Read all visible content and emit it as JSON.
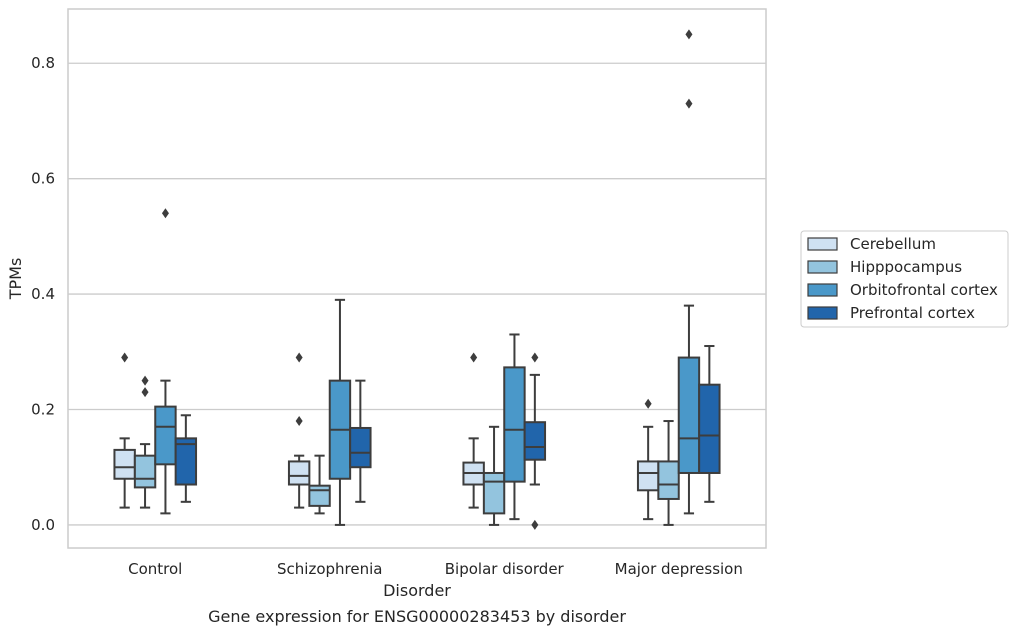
{
  "chart_data": {
    "type": "box",
    "title": "",
    "caption": "Gene expression for ENSG00000283453 by disorder",
    "xlabel": "Disorder",
    "ylabel": "TPMs",
    "ylim": [
      -0.04,
      0.894
    ],
    "yticks": [
      0.0,
      0.2,
      0.4,
      0.6,
      0.8
    ],
    "ytick_labels": [
      "0.0",
      "0.2",
      "0.4",
      "0.6",
      "0.8"
    ],
    "grid": "horizontal",
    "legend_position": "right",
    "categories": [
      "Control",
      "Schizophrenia",
      "Bipolar disorder",
      "Major depression"
    ],
    "series": [
      {
        "name": "Cerebellum",
        "color": "#cfe1f2",
        "boxes": [
          {
            "whislo": 0.03,
            "q1": 0.08,
            "med": 0.1,
            "q3": 0.13,
            "whishi": 0.15,
            "fliers": [
              0.29
            ]
          },
          {
            "whislo": 0.03,
            "q1": 0.07,
            "med": 0.085,
            "q3": 0.11,
            "whishi": 0.12,
            "fliers": [
              0.29,
              0.18
            ]
          },
          {
            "whislo": 0.03,
            "q1": 0.07,
            "med": 0.09,
            "q3": 0.108,
            "whishi": 0.15,
            "fliers": [
              0.29
            ]
          },
          {
            "whislo": 0.01,
            "q1": 0.06,
            "med": 0.09,
            "q3": 0.11,
            "whishi": 0.17,
            "fliers": [
              0.21
            ]
          }
        ]
      },
      {
        "name": "Hipppocampus",
        "color": "#93c4de",
        "boxes": [
          {
            "whislo": 0.03,
            "q1": 0.065,
            "med": 0.08,
            "q3": 0.12,
            "whishi": 0.14,
            "fliers": [
              0.25,
              0.23
            ]
          },
          {
            "whislo": 0.02,
            "q1": 0.033,
            "med": 0.06,
            "q3": 0.068,
            "whishi": 0.12,
            "fliers": []
          },
          {
            "whislo": 0.0,
            "q1": 0.02,
            "med": 0.075,
            "q3": 0.09,
            "whishi": 0.17,
            "fliers": []
          },
          {
            "whislo": 0.0,
            "q1": 0.045,
            "med": 0.07,
            "q3": 0.11,
            "whishi": 0.18,
            "fliers": []
          }
        ]
      },
      {
        "name": "Orbitofrontal cortex",
        "color": "#4a98c9",
        "boxes": [
          {
            "whislo": 0.02,
            "q1": 0.105,
            "med": 0.17,
            "q3": 0.205,
            "whishi": 0.25,
            "fliers": [
              0.54
            ]
          },
          {
            "whislo": 0.0,
            "q1": 0.08,
            "med": 0.165,
            "q3": 0.25,
            "whishi": 0.39,
            "fliers": []
          },
          {
            "whislo": 0.01,
            "q1": 0.075,
            "med": 0.165,
            "q3": 0.273,
            "whishi": 0.33,
            "fliers": []
          },
          {
            "whislo": 0.02,
            "q1": 0.09,
            "med": 0.15,
            "q3": 0.29,
            "whishi": 0.38,
            "fliers": [
              0.85,
              0.73
            ]
          }
        ]
      },
      {
        "name": "Prefrontal cortex",
        "color": "#2165ab",
        "boxes": [
          {
            "whislo": 0.04,
            "q1": 0.07,
            "med": 0.14,
            "q3": 0.15,
            "whishi": 0.19,
            "fliers": []
          },
          {
            "whislo": 0.04,
            "q1": 0.1,
            "med": 0.125,
            "q3": 0.168,
            "whishi": 0.25,
            "fliers": []
          },
          {
            "whislo": 0.07,
            "q1": 0.113,
            "med": 0.135,
            "q3": 0.178,
            "whishi": 0.26,
            "fliers": [
              0.29,
              0.0
            ]
          },
          {
            "whislo": 0.04,
            "q1": 0.09,
            "med": 0.155,
            "q3": 0.243,
            "whishi": 0.31,
            "fliers": []
          }
        ]
      }
    ]
  }
}
